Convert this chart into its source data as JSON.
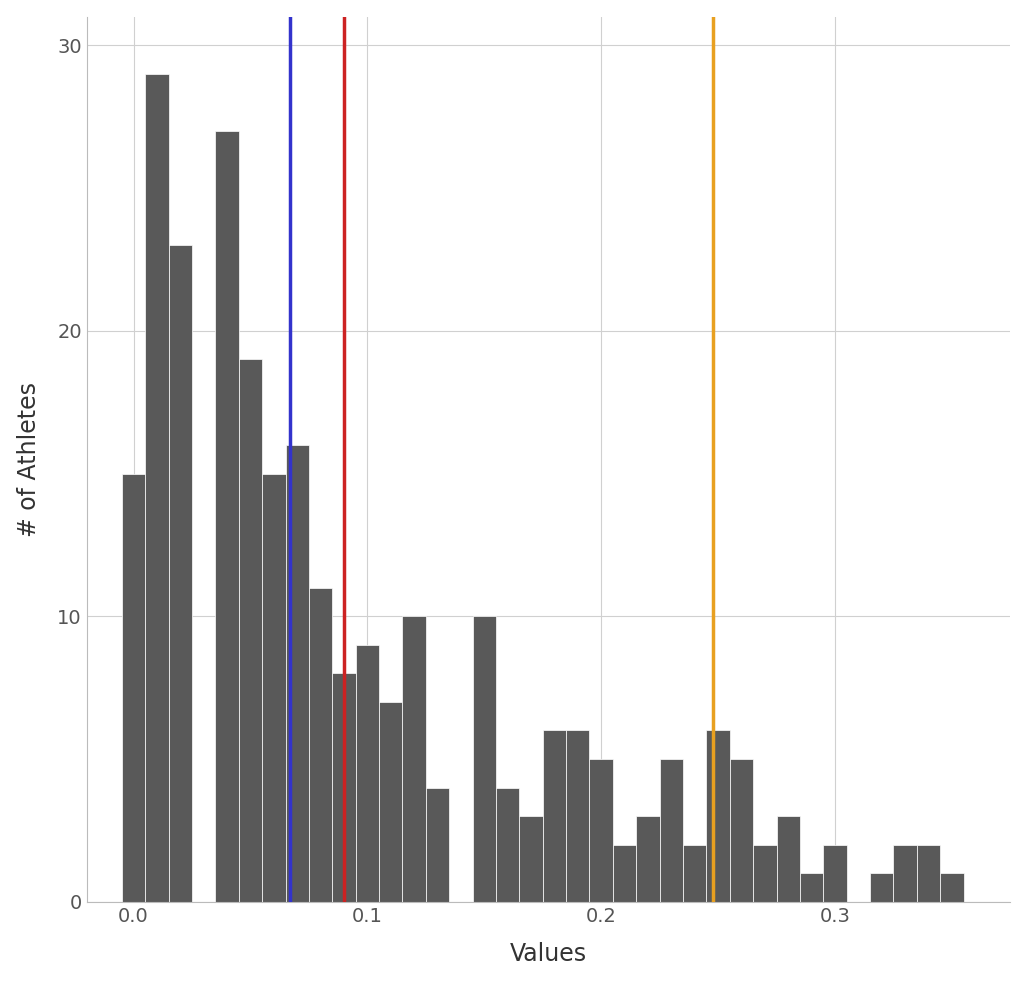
{
  "xlabel": "Values",
  "ylabel": "# of Athletes",
  "bar_color": "#595959",
  "bar_edgecolor": "#ffffff",
  "background_color": "#ffffff",
  "grid_color": "#d0d0d0",
  "vline_blue": 0.067,
  "vline_red": 0.09,
  "vline_orange": 0.248,
  "vline_blue_color": "#3333cc",
  "vline_red_color": "#cc2222",
  "vline_orange_color": "#e8a020",
  "bin_edges": [
    -0.005,
    0.005,
    0.015,
    0.025,
    0.035,
    0.045,
    0.055,
    0.065,
    0.075,
    0.085,
    0.095,
    0.105,
    0.115,
    0.125,
    0.135,
    0.145,
    0.155,
    0.165,
    0.175,
    0.185,
    0.195,
    0.205,
    0.215,
    0.225,
    0.235,
    0.245,
    0.255,
    0.265,
    0.275,
    0.285,
    0.295,
    0.305,
    0.315,
    0.325,
    0.335,
    0.345,
    0.355
  ],
  "counts": [
    15,
    29,
    23,
    0,
    27,
    19,
    15,
    16,
    11,
    8,
    9,
    7,
    10,
    4,
    0,
    10,
    4,
    3,
    6,
    6,
    5,
    2,
    3,
    5,
    2,
    6,
    5,
    2,
    3,
    1,
    2,
    0,
    1,
    2,
    2,
    1
  ],
  "xlim": [
    -0.02,
    0.375
  ],
  "ylim": [
    0,
    31
  ],
  "yticks": [
    0,
    10,
    20,
    30
  ],
  "xticks": [
    0.0,
    0.1,
    0.2,
    0.3
  ],
  "figsize": [
    10.27,
    9.83
  ],
  "dpi": 100
}
